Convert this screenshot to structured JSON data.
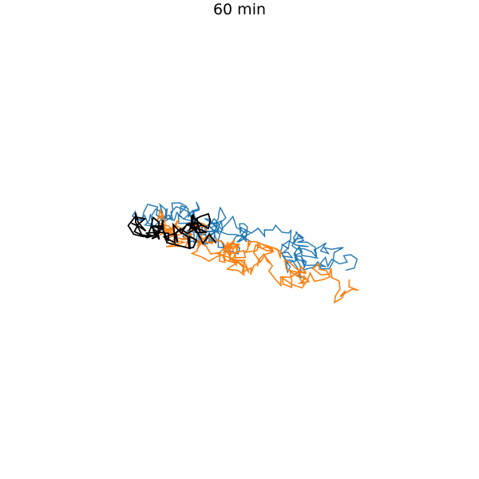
{
  "figure": {
    "title": "60 min"
  },
  "traces": [
    {
      "name": "blue",
      "color": "#1f77b4"
    },
    {
      "name": "orange",
      "color": "#ff7f0e"
    },
    {
      "name": "black",
      "color": "#000000"
    }
  ]
}
